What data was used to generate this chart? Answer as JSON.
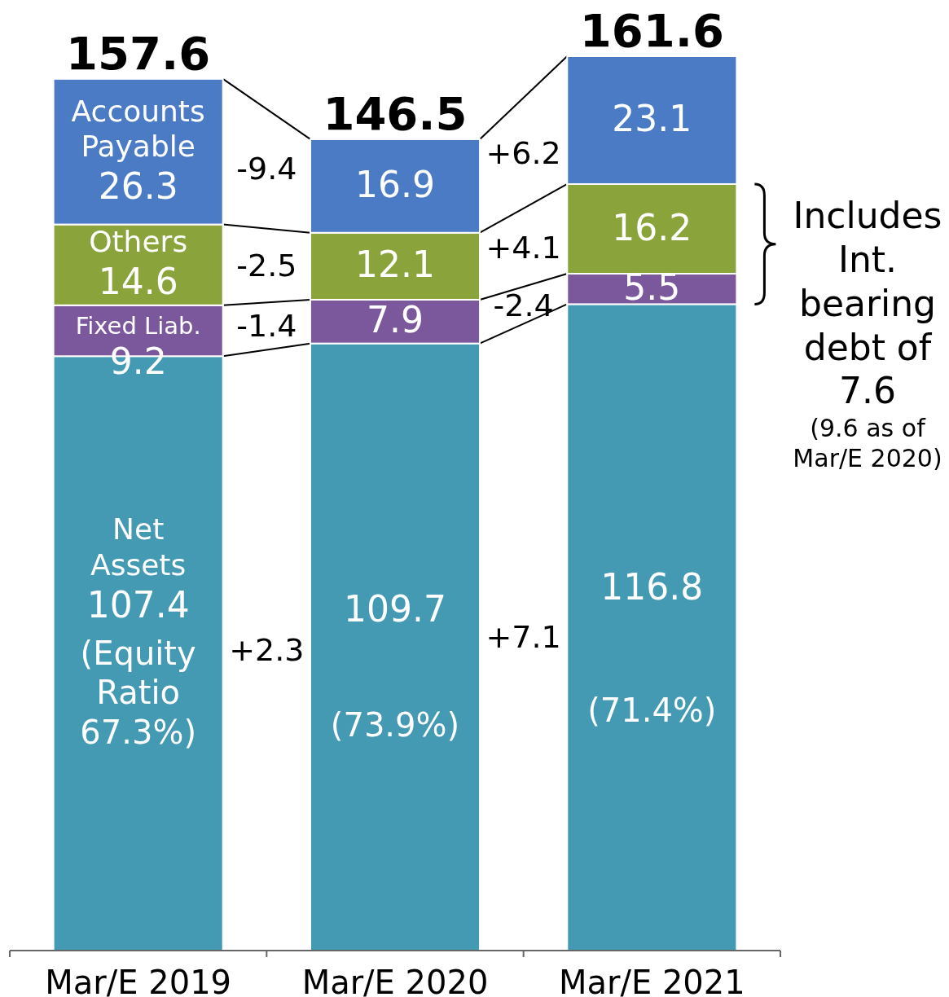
{
  "chart_data": {
    "type": "bar",
    "stacked": true,
    "data_labels": true,
    "categories": [
      "Mar/E 2019",
      "Mar/E 2020",
      "Mar/E 2021"
    ],
    "series": [
      {
        "name": "Net Assets",
        "color": "#4499b3",
        "values": [
          107.4,
          109.7,
          116.8
        ]
      },
      {
        "name": "Fixed Liab.",
        "color": "#7b589b",
        "values": [
          9.2,
          7.9,
          5.5
        ]
      },
      {
        "name": "Others",
        "color": "#8ba33b",
        "values": [
          14.6,
          12.1,
          16.2
        ]
      },
      {
        "name": "Accounts Payable",
        "color": "#4a7bc4",
        "values": [
          26.3,
          16.9,
          23.1
        ]
      }
    ],
    "totals": [
      "157.6",
      "146.5",
      "161.6"
    ],
    "annotations": [
      "+2.3",
      "-1.4",
      "-2.5",
      "-9.4",
      "+7.1",
      "-2.4",
      "+4.1",
      "+6.2",
      "(Equity Ratio 67.3%)",
      "(73.9%)",
      "(71.4%)",
      "Includes Int. bearing debt of 7.6",
      "(9.6 as of Mar/E 2020)"
    ]
  }
}
